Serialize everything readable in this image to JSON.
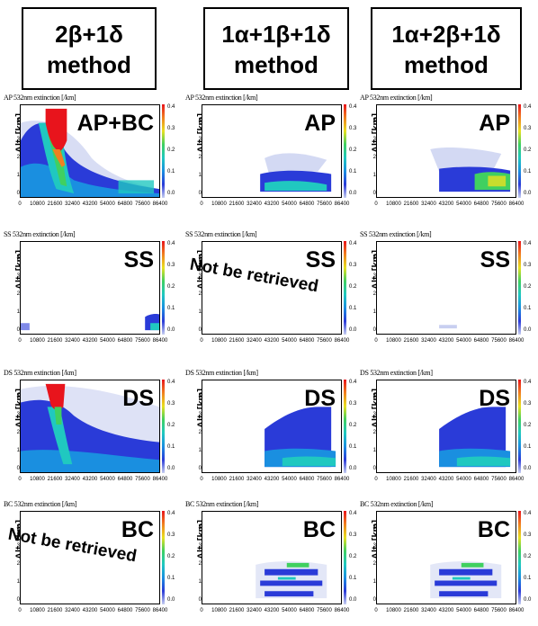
{
  "headers": [
    {
      "line1": "2β+1δ",
      "line2": "method"
    },
    {
      "line1": "1α+1β+1δ",
      "line2": "method"
    },
    {
      "line1": "1α+2β+1δ",
      "line2": "method"
    }
  ],
  "axis": {
    "ylabel": "Alt. [km]",
    "yticks": [
      "0",
      "1",
      "2",
      "3",
      "4"
    ],
    "xticks": [
      "0",
      "10800",
      "21600",
      "32400",
      "43200",
      "54000",
      "64800",
      "75600",
      "86400"
    ],
    "colorbar_ticks": [
      "0.4",
      "0.3",
      "0.2",
      "0.1",
      "0.0"
    ]
  },
  "not_retrieved_text": "Not be retrieved",
  "chart_data": [
    {
      "type": "heatmap",
      "title": "AP 532nm extinction [/km]",
      "label": "AP+BC",
      "method": "2β+1δ",
      "pattern": "apbc"
    },
    {
      "type": "heatmap",
      "title": "AP 532nm extinction [/km]",
      "label": "AP",
      "method": "1α+1β+1δ",
      "pattern": "ap2"
    },
    {
      "type": "heatmap",
      "title": "AP 532nm extinction [/km]",
      "label": "AP",
      "method": "1α+2β+1δ",
      "pattern": "ap3"
    },
    {
      "type": "heatmap",
      "title": "SS 532nm extinction [/km]",
      "label": "SS",
      "method": "2β+1δ",
      "pattern": "ss1"
    },
    {
      "type": "heatmap",
      "title": "SS 532nm extinction [/km]",
      "label": "SS",
      "method": "1α+1β+1δ",
      "pattern": "none",
      "not_retrieved": true
    },
    {
      "type": "heatmap",
      "title": "SS 532nm extinction [/km]",
      "label": "SS",
      "method": "1α+2β+1δ",
      "pattern": "ss3"
    },
    {
      "type": "heatmap",
      "title": "DS 532nm extinction [/km]",
      "label": "DS",
      "method": "2β+1δ",
      "pattern": "ds1"
    },
    {
      "type": "heatmap",
      "title": "DS 532nm extinction [/km]",
      "label": "DS",
      "method": "1α+1β+1δ",
      "pattern": "ds2"
    },
    {
      "type": "heatmap",
      "title": "DS 532nm extinction [/km]",
      "label": "DS",
      "method": "1α+2β+1δ",
      "pattern": "ds2"
    },
    {
      "type": "heatmap",
      "title": "BC 532nm extinction [/km]",
      "label": "BC",
      "method": "2β+1δ",
      "pattern": "none",
      "not_retrieved": true
    },
    {
      "type": "heatmap",
      "title": "BC 532nm extinction [/km]",
      "label": "BC",
      "method": "1α+1β+1δ",
      "pattern": "bc"
    },
    {
      "type": "heatmap",
      "title": "BC 532nm extinction [/km]",
      "label": "BC",
      "method": "1α+2β+1δ",
      "pattern": "bc"
    }
  ],
  "colors": {
    "scale": [
      "#ffffff",
      "#c8cff0",
      "#2a3bd8",
      "#1a8fe0",
      "#20c8c0",
      "#40d060",
      "#e8e020",
      "#f08020",
      "#e8141c"
    ]
  }
}
